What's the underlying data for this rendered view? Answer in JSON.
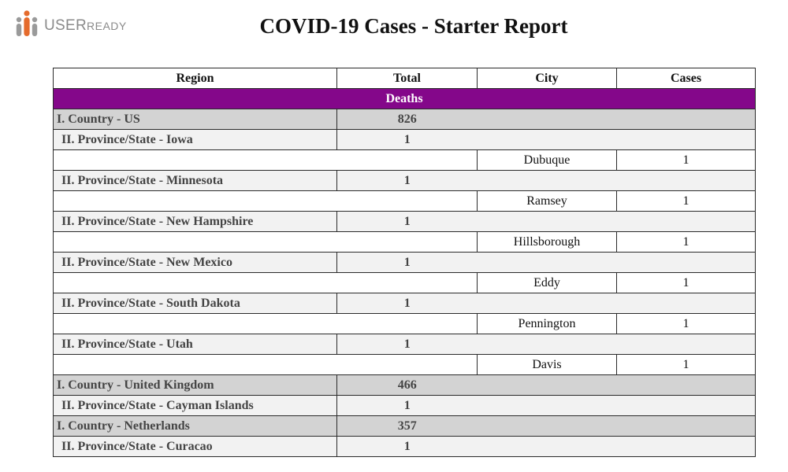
{
  "logo": {
    "brand_prefix": "USER",
    "brand_suffix": "READY",
    "dot_colors": [
      "#e56b2c",
      "#9a9a9a",
      "#9a9a9a"
    ]
  },
  "report": {
    "title": "COVID-19 Cases - Starter Report"
  },
  "table": {
    "headers": {
      "region": "Region",
      "total": "Total",
      "city": "City",
      "cases": "Cases"
    },
    "section": "Deaths",
    "rows": [
      {
        "type": "country",
        "label": "I. Country - US",
        "total": "826"
      },
      {
        "type": "province",
        "label": "II. Province/State - Iowa",
        "total": "1"
      },
      {
        "type": "city",
        "city": "Dubuque",
        "cases": "1"
      },
      {
        "type": "province",
        "label": "II. Province/State - Minnesota",
        "total": "1"
      },
      {
        "type": "city",
        "city": "Ramsey",
        "cases": "1"
      },
      {
        "type": "province",
        "label": "II. Province/State - New Hampshire",
        "total": "1"
      },
      {
        "type": "city",
        "city": "Hillsborough",
        "cases": "1"
      },
      {
        "type": "province",
        "label": "II. Province/State - New Mexico",
        "total": "1"
      },
      {
        "type": "city",
        "city": "Eddy",
        "cases": "1"
      },
      {
        "type": "province",
        "label": "II. Province/State - South Dakota",
        "total": "1"
      },
      {
        "type": "city",
        "city": "Pennington",
        "cases": "1"
      },
      {
        "type": "province",
        "label": "II. Province/State - Utah",
        "total": "1"
      },
      {
        "type": "city",
        "city": "Davis",
        "cases": "1"
      },
      {
        "type": "country",
        "label": "I. Country - United Kingdom",
        "total": "466"
      },
      {
        "type": "province",
        "label": "II. Province/State - Cayman Islands",
        "total": "1"
      },
      {
        "type": "country",
        "label": "I. Country - Netherlands",
        "total": "357"
      },
      {
        "type": "province",
        "label": "II. Province/State - Curacao",
        "total": "1"
      }
    ]
  },
  "colors": {
    "section_bg": "#84078a",
    "country_bg": "#d3d3d3",
    "province_bg": "#f2f2f2"
  }
}
